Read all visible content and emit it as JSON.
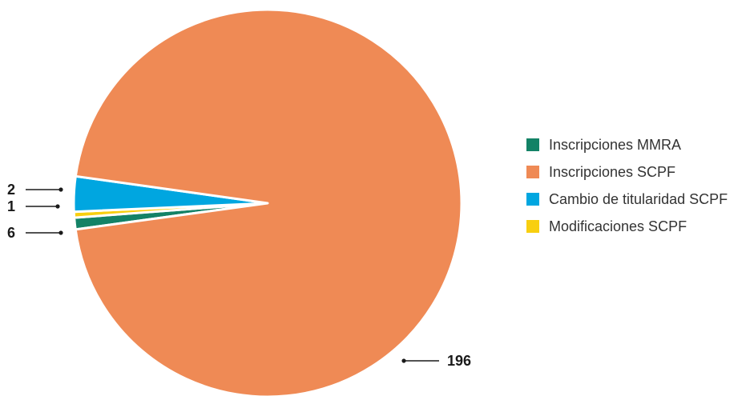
{
  "chart_data": {
    "type": "pie",
    "title": "",
    "categories": [
      "Inscripciones MMRA",
      "Inscripciones SCPF",
      "Cambio de titularidad SCPF",
      "Modificaciones SCPF"
    ],
    "values": [
      2,
      196,
      6,
      1
    ],
    "colors": [
      "#138266",
      "#ef8a55",
      "#00a6e0",
      "#f8cf10"
    ],
    "data_labels": [
      "2",
      "196",
      "6",
      "1"
    ],
    "legend_position": "right"
  }
}
